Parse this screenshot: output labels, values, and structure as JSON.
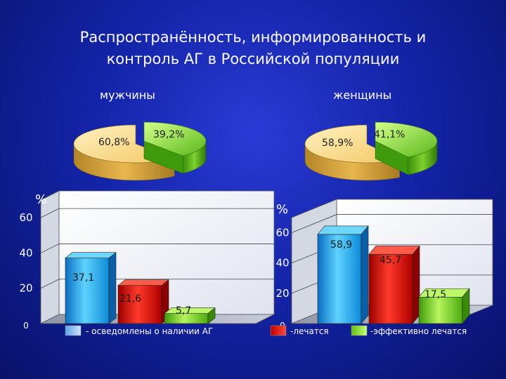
{
  "title": {
    "line1": "Распространённость,  информированность и",
    "line2": "контроль  АГ  в  Российской   популяции"
  },
  "pie_labels": {
    "men": "мужчины",
    "women": "женщины"
  },
  "colors": {
    "background": "#1424a8",
    "pie_yellow": "#f8d27a",
    "pie_green": "#8fe03a",
    "bar_blue": "#23b4f0",
    "bar_red": "#e01010",
    "bar_green": "#8fe03a"
  },
  "chart_data": [
    {
      "type": "pie",
      "title": "мужчины",
      "slices": [
        {
          "label": "60,8%",
          "value": 60.8
        },
        {
          "label": "39,2%",
          "value": 39.2
        }
      ]
    },
    {
      "type": "pie",
      "title": "женщины",
      "slices": [
        {
          "label": "58,9%",
          "value": 58.9
        },
        {
          "label": "41,1%",
          "value": 41.1
        }
      ]
    },
    {
      "type": "bar",
      "ylabel": "%",
      "ylim": [
        0,
        70
      ],
      "yticks": [
        "60",
        "40",
        "20",
        "0"
      ],
      "ytick_values": [
        60,
        40,
        20,
        0
      ],
      "values": [
        37.1,
        21.6,
        5.7
      ],
      "value_labels": [
        "37,1",
        "21,6",
        "5,7"
      ],
      "legend": [
        "- осведомлены о наличии АГ"
      ]
    },
    {
      "type": "bar",
      "ylabel": "%",
      "ylim": [
        0,
        70
      ],
      "yticks": [
        "60",
        "40",
        "20",
        "0"
      ],
      "ytick_values": [
        60,
        40,
        20,
        0
      ],
      "values": [
        58.9,
        45.7,
        17.5
      ],
      "value_labels": [
        "58,9",
        "45,7",
        "17,5"
      ],
      "legend": [
        "-лечатся",
        "-эффективно лечатся"
      ]
    }
  ]
}
